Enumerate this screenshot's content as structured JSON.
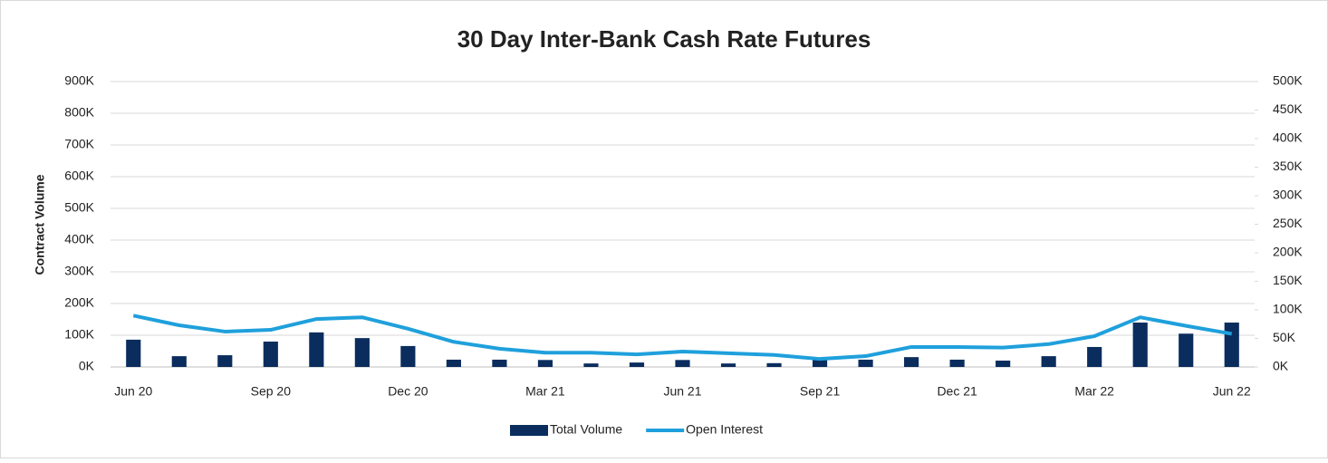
{
  "chart_data": {
    "type": "bar-line",
    "title": "30 Day Inter-Bank Cash Rate Futures",
    "y_label": "Contract Volume",
    "categories": [
      "Jun 20",
      null,
      null,
      "Sep 20",
      null,
      null,
      "Dec 20",
      null,
      null,
      "Mar 21",
      null,
      null,
      "Jun 21",
      null,
      null,
      "Sep 21",
      null,
      null,
      "Dec 21",
      null,
      null,
      "Mar 22",
      null,
      null,
      "Jun 22"
    ],
    "series": [
      {
        "name": "Total Volume",
        "type": "bar",
        "color": "#0a2d5e",
        "values": [
          86000,
          34000,
          37000,
          80000,
          109000,
          91000,
          66000,
          23000,
          23000,
          22000,
          11000,
          14000,
          22000,
          11000,
          12000,
          22000,
          23000,
          31000,
          23000,
          20000,
          34000,
          63000,
          140000,
          105000,
          140000
        ]
      },
      {
        "name": "Open Interest",
        "type": "line",
        "color": "#1fa0dc",
        "axis": "y2",
        "values": [
          90000,
          73000,
          62000,
          65000,
          84000,
          87000,
          67000,
          44000,
          32000,
          25000,
          25000,
          22000,
          27000,
          24000,
          21000,
          14000,
          19000,
          35000,
          35000,
          34000,
          40000,
          54000,
          87000,
          72000,
          58000
        ]
      }
    ],
    "ylim": [
      0,
      900000
    ],
    "yticks": [
      {
        "value": 0,
        "label": "0K"
      },
      {
        "value": 100000,
        "label": "100K"
      },
      {
        "value": 200000,
        "label": "200K"
      },
      {
        "value": 300000,
        "label": "300K"
      },
      {
        "value": 400000,
        "label": "400K"
      },
      {
        "value": 500000,
        "label": "500K"
      },
      {
        "value": 600000,
        "label": "600K"
      },
      {
        "value": 700000,
        "label": "700K"
      },
      {
        "value": 800000,
        "label": "800K"
      },
      {
        "value": 900000,
        "label": "900K"
      }
    ],
    "y2lim": [
      0,
      500000
    ],
    "y2ticks": [
      {
        "value": 0,
        "label": "0K"
      },
      {
        "value": 50000,
        "label": "50K"
      },
      {
        "value": 100000,
        "label": "100K"
      },
      {
        "value": 150000,
        "label": "150K"
      },
      {
        "value": 200000,
        "label": "200K"
      },
      {
        "value": 250000,
        "label": "250K"
      },
      {
        "value": 300000,
        "label": "300K"
      },
      {
        "value": 350000,
        "label": "350K"
      },
      {
        "value": 400000,
        "label": "400K"
      },
      {
        "value": 450000,
        "label": "450K"
      },
      {
        "value": 500000,
        "label": "500K"
      }
    ],
    "grid": true,
    "legend": "bottom"
  }
}
